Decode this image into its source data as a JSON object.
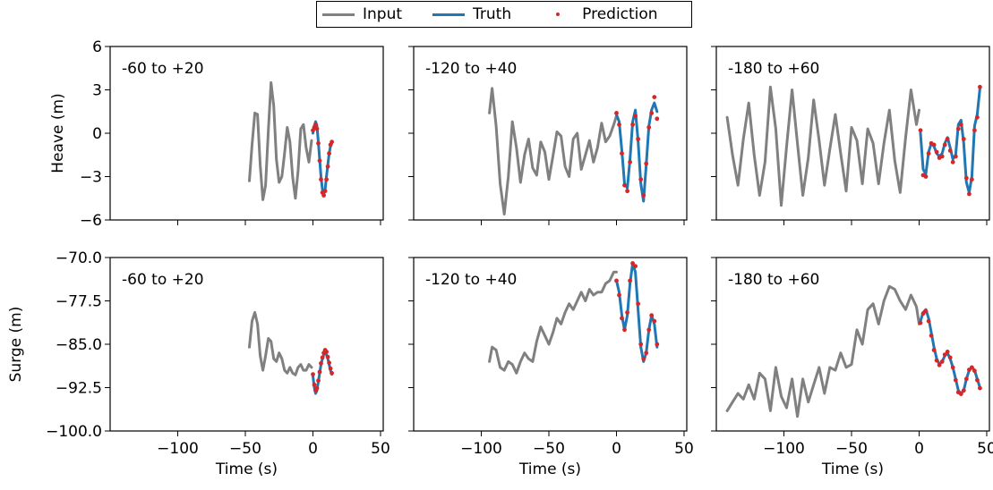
{
  "legend": [
    {
      "label": "Input",
      "color": "#808080",
      "kind": "line"
    },
    {
      "label": "Truth",
      "color": "#1f77b4",
      "kind": "line"
    },
    {
      "label": "Prediction",
      "color": "#d62728",
      "kind": "dot"
    }
  ],
  "row_ylabels": [
    "Heave (m)",
    "Surge (m)"
  ],
  "xlabel": "Time (s)",
  "chart_data": [
    {
      "type": "line",
      "row": 0,
      "col": 0,
      "annotation": "-60 to +20",
      "ylabel": "Heave (m)",
      "xlim": [
        -150,
        52
      ],
      "ylim": [
        -6,
        6
      ],
      "xticks": [
        -100,
        -50,
        0,
        50
      ],
      "yticks": [
        -6,
        -3,
        0,
        3,
        6
      ],
      "series": [
        {
          "name": "Input",
          "x": [
            -47,
            -45,
            -43,
            -41,
            -39,
            -37,
            -35,
            -33,
            -31,
            -29,
            -27,
            -25,
            -23,
            -21,
            -19,
            -17,
            -15,
            -13,
            -11,
            -9,
            -7,
            -5,
            -3,
            -1
          ],
          "y": [
            -3.3,
            -0.8,
            1.4,
            1.3,
            -2.2,
            -4.6,
            -3.6,
            0.2,
            3.5,
            1.9,
            -1.8,
            -3.4,
            -3.0,
            -1.4,
            0.4,
            -0.6,
            -3.0,
            -4.5,
            -2.6,
            0.3,
            0.6,
            -1.0,
            -2.0,
            -0.5
          ]
        },
        {
          "name": "Truth",
          "x": [
            0,
            1,
            2,
            3,
            4,
            5,
            6,
            7,
            8,
            9,
            10,
            11,
            12,
            13,
            14
          ],
          "y": [
            0.0,
            0.5,
            0.8,
            0.5,
            -0.6,
            -1.8,
            -3.0,
            -3.9,
            -4.2,
            -3.9,
            -3.0,
            -2.2,
            -1.4,
            -0.9,
            -0.7
          ]
        },
        {
          "name": "Prediction",
          "x": [
            0,
            1,
            2,
            3,
            4,
            5,
            6,
            7,
            8,
            9,
            10,
            11,
            12,
            13,
            14
          ],
          "y": [
            0.2,
            0.4,
            0.6,
            0.3,
            -0.7,
            -1.9,
            -3.2,
            -4.1,
            -4.3,
            -4.0,
            -3.2,
            -2.3,
            -1.4,
            -0.8,
            -0.6
          ]
        }
      ]
    },
    {
      "type": "line",
      "row": 0,
      "col": 1,
      "annotation": "-120 to +40",
      "ylabel": "Heave (m)",
      "xlim": [
        -150,
        52
      ],
      "ylim": [
        -6,
        6
      ],
      "xticks": [
        -100,
        -50,
        0,
        50
      ],
      "yticks": [
        -6,
        -3,
        0,
        3,
        6
      ],
      "series": [
        {
          "name": "Input",
          "x": [
            -94,
            -92,
            -89,
            -86,
            -83,
            -80,
            -77,
            -74,
            -71,
            -68,
            -65,
            -62,
            -59,
            -56,
            -53,
            -50,
            -47,
            -44,
            -41,
            -38,
            -35,
            -32,
            -29,
            -26,
            -23,
            -20,
            -17,
            -14,
            -11,
            -8,
            -5,
            -2,
            0
          ],
          "y": [
            1.4,
            3.1,
            0.5,
            -3.5,
            -5.6,
            -3.0,
            0.8,
            -1.0,
            -3.4,
            -1.5,
            -0.4,
            -2.4,
            -2.9,
            -0.6,
            -1.3,
            -3.2,
            -1.6,
            0.1,
            -0.2,
            -2.3,
            -3.0,
            -0.4,
            0.0,
            -2.5,
            -1.5,
            -0.5,
            -2.0,
            -1.0,
            0.7,
            -0.6,
            -0.2,
            0.6,
            1.2
          ]
        },
        {
          "name": "Truth",
          "x": [
            0,
            2,
            4,
            6,
            8,
            10,
            12,
            14,
            16,
            18,
            20,
            22,
            24,
            26,
            28,
            30
          ],
          "y": [
            1.3,
            0.8,
            -1.2,
            -3.5,
            -3.8,
            -1.8,
            0.8,
            1.6,
            -0.5,
            -3.5,
            -4.7,
            -2.2,
            0.5,
            1.6,
            2.1,
            1.5
          ]
        },
        {
          "name": "Prediction",
          "x": [
            0,
            2,
            4,
            6,
            8,
            10,
            12,
            14,
            16,
            18,
            20,
            22,
            24,
            26,
            28,
            30
          ],
          "y": [
            1.4,
            0.6,
            -1.4,
            -3.6,
            -4.0,
            -2.0,
            0.6,
            1.2,
            -0.4,
            -3.2,
            -4.3,
            -2.1,
            0.4,
            1.4,
            2.5,
            1.0
          ]
        }
      ]
    },
    {
      "type": "line",
      "row": 0,
      "col": 2,
      "annotation": "-180 to +60",
      "ylabel": "Heave (m)",
      "xlim": [
        -150,
        52
      ],
      "ylim": [
        -6,
        6
      ],
      "xticks": [
        -100,
        -50,
        0,
        50
      ],
      "yticks": [
        -6,
        -3,
        0,
        3,
        6
      ],
      "series": [
        {
          "name": "Input",
          "x": [
            -142,
            -138,
            -134,
            -130,
            -126,
            -122,
            -118,
            -114,
            -110,
            -106,
            -102,
            -98,
            -94,
            -90,
            -86,
            -82,
            -78,
            -74,
            -70,
            -66,
            -62,
            -58,
            -54,
            -50,
            -46,
            -42,
            -38,
            -34,
            -30,
            -26,
            -22,
            -18,
            -14,
            -10,
            -6,
            -2,
            0
          ],
          "y": [
            1.1,
            -1.5,
            -3.6,
            -0.4,
            2.1,
            -1.5,
            -4.3,
            -2.0,
            3.2,
            0.3,
            -5.0,
            -0.9,
            3.0,
            -0.7,
            -4.3,
            -1.7,
            2.3,
            -0.5,
            -3.6,
            -1.1,
            1.3,
            -1.4,
            -4.0,
            0.4,
            -0.5,
            -3.5,
            0.3,
            -0.7,
            -3.5,
            -0.7,
            1.6,
            -1.9,
            -4.1,
            -0.3,
            3.0,
            0.6,
            1.6
          ]
        },
        {
          "name": "Truth",
          "x": [
            1,
            3,
            5,
            7,
            9,
            11,
            13,
            15,
            17,
            19,
            21,
            23,
            25,
            27,
            29,
            31,
            33,
            35,
            37,
            39,
            41,
            43,
            45
          ],
          "y": [
            0.0,
            -2.5,
            -2.8,
            -1.3,
            -0.7,
            -0.9,
            -1.4,
            -1.6,
            -1.4,
            -0.7,
            -0.3,
            -1.0,
            -1.8,
            -1.5,
            0.6,
            0.9,
            -0.7,
            -3.4,
            -4.1,
            -3.0,
            0.5,
            1.3,
            3.1
          ]
        },
        {
          "name": "Prediction",
          "x": [
            1,
            3,
            5,
            7,
            9,
            11,
            13,
            15,
            17,
            19,
            21,
            23,
            25,
            27,
            29,
            31,
            33,
            35,
            37,
            39,
            41,
            43,
            45
          ],
          "y": [
            0.2,
            -2.9,
            -3.0,
            -1.4,
            -0.7,
            -0.8,
            -1.3,
            -1.7,
            -1.6,
            -0.8,
            -0.4,
            -1.2,
            -2.0,
            -1.6,
            0.3,
            0.6,
            -0.4,
            -3.1,
            -4.2,
            -3.2,
            0.2,
            1.1,
            3.2
          ]
        }
      ]
    },
    {
      "type": "line",
      "row": 1,
      "col": 0,
      "annotation": "-60 to +20",
      "ylabel": "Surge (m)",
      "xlim": [
        -150,
        52
      ],
      "ylim": [
        -100,
        -70
      ],
      "xticks": [
        -100,
        -50,
        0,
        50
      ],
      "yticks": [
        -100.0,
        -92.5,
        -85.0,
        -77.5,
        -70.0
      ],
      "series": [
        {
          "name": "Input",
          "x": [
            -47,
            -45,
            -43,
            -41,
            -39,
            -37,
            -35,
            -33,
            -31,
            -29,
            -27,
            -25,
            -23,
            -21,
            -19,
            -17,
            -15,
            -13,
            -11,
            -9,
            -7,
            -5,
            -3,
            -1
          ],
          "y": [
            -85.5,
            -81.0,
            -79.5,
            -81.5,
            -87.0,
            -89.5,
            -87.0,
            -84.0,
            -84.5,
            -87.5,
            -88.0,
            -86.5,
            -87.5,
            -89.5,
            -90.0,
            -89.0,
            -90.0,
            -90.3,
            -89.0,
            -88.5,
            -89.5,
            -89.5,
            -88.5,
            -89.0
          ]
        },
        {
          "name": "Truth",
          "x": [
            0,
            1,
            2,
            3,
            4,
            5,
            6,
            7,
            8,
            9,
            10,
            11,
            12,
            13,
            14
          ],
          "y": [
            -90.5,
            -92.5,
            -93.5,
            -93.0,
            -91.5,
            -90.0,
            -88.5,
            -87.5,
            -86.8,
            -86.5,
            -86.8,
            -87.5,
            -88.5,
            -89.5,
            -90.2
          ]
        },
        {
          "name": "Prediction",
          "x": [
            0,
            1,
            2,
            3,
            4,
            5,
            6,
            7,
            8,
            9,
            10,
            11,
            12,
            13,
            14
          ],
          "y": [
            -90.2,
            -92.0,
            -93.0,
            -92.6,
            -91.3,
            -89.8,
            -88.3,
            -87.3,
            -86.5,
            -86.0,
            -86.3,
            -87.2,
            -88.2,
            -89.2,
            -90.0
          ]
        }
      ]
    },
    {
      "type": "line",
      "row": 1,
      "col": 1,
      "annotation": "-120 to +40",
      "ylabel": "Surge (m)",
      "xlim": [
        -150,
        52
      ],
      "ylim": [
        -100,
        -70
      ],
      "xticks": [
        -100,
        -50,
        0,
        50
      ],
      "yticks": [
        -100.0,
        -92.5,
        -85.0,
        -77.5,
        -70.0
      ],
      "series": [
        {
          "name": "Input",
          "x": [
            -94,
            -92,
            -89,
            -86,
            -83,
            -80,
            -77,
            -74,
            -71,
            -68,
            -65,
            -62,
            -59,
            -56,
            -53,
            -50,
            -47,
            -44,
            -41,
            -38,
            -35,
            -32,
            -29,
            -26,
            -23,
            -20,
            -17,
            -14,
            -11,
            -8,
            -5,
            -2,
            0
          ],
          "y": [
            -88.0,
            -85.5,
            -86.0,
            -89.0,
            -89.5,
            -88.0,
            -88.5,
            -90.0,
            -88.0,
            -86.5,
            -87.5,
            -88.0,
            -84.5,
            -82.0,
            -83.5,
            -85.0,
            -83.0,
            -80.5,
            -81.5,
            -79.5,
            -78.0,
            -79.0,
            -77.5,
            -76.0,
            -77.5,
            -75.5,
            -76.5,
            -76.0,
            -76.0,
            -74.5,
            -74.0,
            -72.5,
            -72.5
          ]
        },
        {
          "name": "Truth",
          "x": [
            0,
            2,
            4,
            6,
            8,
            10,
            12,
            14,
            16,
            18,
            20,
            22,
            24,
            26,
            28,
            30
          ],
          "y": [
            -74.0,
            -76.0,
            -80.0,
            -82.5,
            -80.0,
            -74.5,
            -71.0,
            -72.5,
            -79.0,
            -85.5,
            -88.0,
            -86.5,
            -82.5,
            -80.0,
            -81.5,
            -85.5
          ]
        },
        {
          "name": "Prediction",
          "x": [
            0,
            2,
            4,
            6,
            8,
            10,
            12,
            14,
            16,
            18,
            20,
            22,
            24,
            26,
            28,
            30
          ],
          "y": [
            -74.0,
            -76.5,
            -80.5,
            -82.5,
            -79.5,
            -74.0,
            -71.0,
            -71.5,
            -78.0,
            -85.0,
            -87.5,
            -86.5,
            -82.5,
            -80.0,
            -81.0,
            -85.0
          ]
        }
      ]
    },
    {
      "type": "line",
      "row": 1,
      "col": 2,
      "annotation": "-180 to +60",
      "ylabel": "Surge (m)",
      "xlim": [
        -150,
        52
      ],
      "ylim": [
        -100,
        -70
      ],
      "xticks": [
        -100,
        -50,
        0,
        50
      ],
      "yticks": [
        -100.0,
        -92.5,
        -85.0,
        -77.5,
        -70.0
      ],
      "series": [
        {
          "name": "Input",
          "x": [
            -142,
            -138,
            -134,
            -130,
            -126,
            -122,
            -118,
            -114,
            -110,
            -106,
            -102,
            -98,
            -94,
            -90,
            -86,
            -82,
            -78,
            -74,
            -70,
            -66,
            -62,
            -58,
            -54,
            -50,
            -46,
            -42,
            -38,
            -34,
            -30,
            -26,
            -22,
            -18,
            -14,
            -10,
            -6,
            -2,
            0
          ],
          "y": [
            -96.5,
            -95.0,
            -93.5,
            -94.5,
            -92.0,
            -94.5,
            -90.0,
            -91.0,
            -96.5,
            -89.0,
            -94.0,
            -96.0,
            -91.0,
            -97.5,
            -91.0,
            -95.0,
            -92.0,
            -89.0,
            -93.5,
            -89.0,
            -89.5,
            -86.5,
            -89.0,
            -88.5,
            -82.5,
            -85.0,
            -79.0,
            -78.0,
            -81.5,
            -77.5,
            -75.0,
            -75.5,
            -77.5,
            -79.0,
            -76.5,
            -78.5,
            -81.5
          ]
        },
        {
          "name": "Truth",
          "x": [
            1,
            3,
            5,
            7,
            9,
            11,
            13,
            15,
            17,
            19,
            21,
            23,
            25,
            27,
            29,
            31,
            33,
            35,
            37,
            39,
            41,
            43,
            45
          ],
          "y": [
            -81.0,
            -79.5,
            -79.0,
            -80.5,
            -83.0,
            -85.5,
            -87.5,
            -88.5,
            -88.0,
            -87.0,
            -86.5,
            -87.5,
            -89.0,
            -91.0,
            -93.0,
            -93.5,
            -93.0,
            -91.0,
            -89.5,
            -89.0,
            -89.5,
            -91.0,
            -92.5
          ]
        },
        {
          "name": "Prediction",
          "x": [
            1,
            3,
            5,
            7,
            9,
            11,
            13,
            15,
            17,
            19,
            21,
            23,
            25,
            27,
            29,
            31,
            33,
            35,
            37,
            39,
            41,
            43,
            45
          ],
          "y": [
            -81.3,
            -79.7,
            -79.3,
            -81.0,
            -83.5,
            -86.0,
            -87.8,
            -88.6,
            -88.0,
            -86.8,
            -86.3,
            -87.3,
            -89.0,
            -91.2,
            -93.3,
            -93.6,
            -93.0,
            -91.0,
            -89.4,
            -89.0,
            -89.6,
            -91.2,
            -92.6
          ]
        }
      ]
    }
  ]
}
